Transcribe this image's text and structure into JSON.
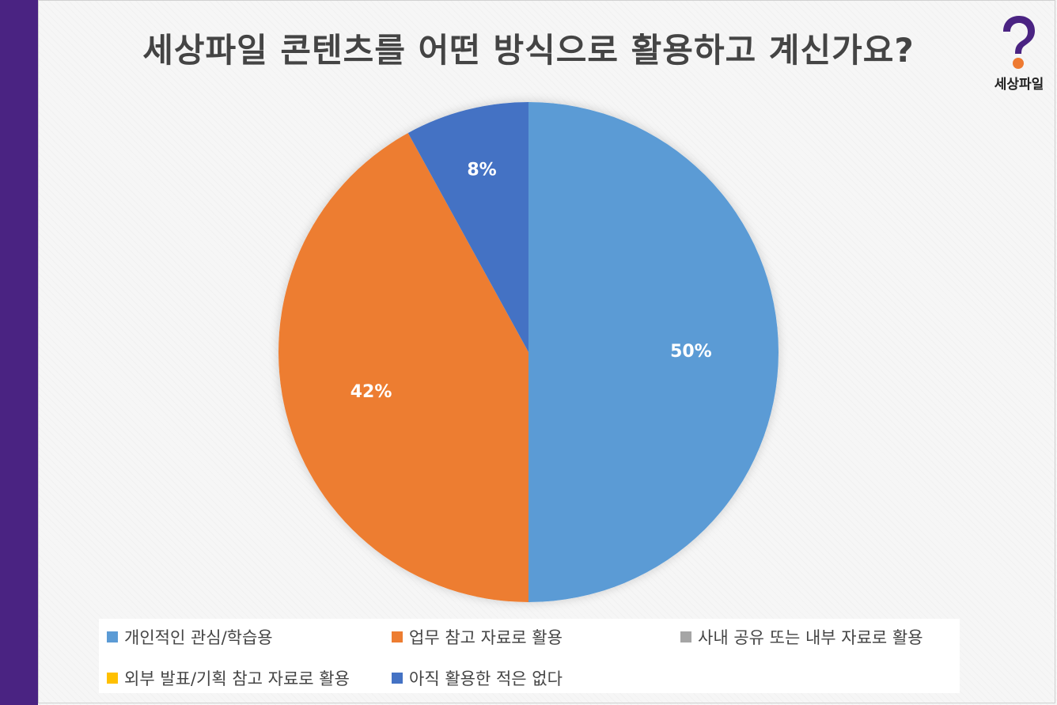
{
  "brand": {
    "name": "세상파일",
    "accent": "#4a2382",
    "logo_accent": "#ee7a31"
  },
  "chart_data": {
    "type": "pie",
    "title": "세상파일 콘텐츠를 어떤 방식으로 활용하고 계신가요?",
    "categories": [
      "개인적인 관심/학습용",
      "업무 참고 자료로 활용",
      "사내 공유 또는 내부 자료로 활용",
      "외부 발표/기획 참고 자료로 활용",
      "아직 활용한 적은 없다"
    ],
    "values": [
      50,
      42,
      0,
      0,
      8
    ],
    "value_labels": [
      "50%",
      "42%",
      "",
      "",
      "8%"
    ],
    "colors": [
      "#5b9bd5",
      "#ed7d31",
      "#a5a5a5",
      "#ffc000",
      "#4472c4"
    ],
    "legend_position": "bottom",
    "start_angle_deg": 0,
    "direction": "clockwise"
  }
}
